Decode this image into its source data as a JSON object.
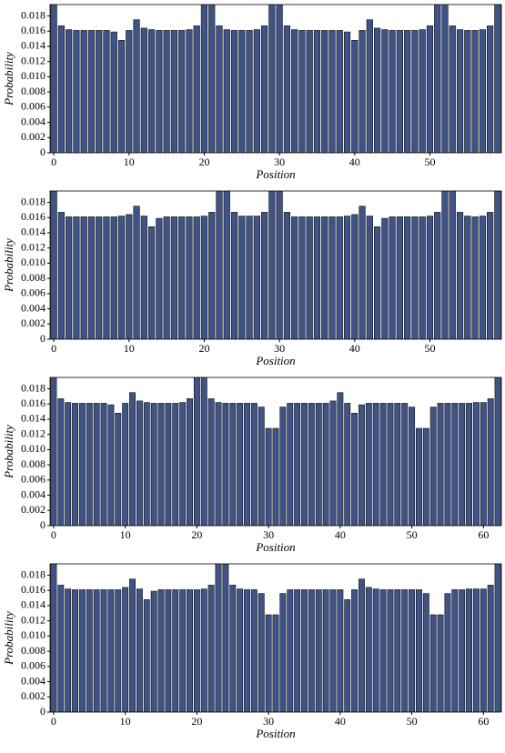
{
  "chart_data": [
    {
      "type": "bar",
      "xlabel": "Position",
      "ylabel": "Probability",
      "color": "#3f5387",
      "x": [
        0,
        1,
        2,
        3,
        4,
        5,
        6,
        7,
        8,
        9,
        10,
        11,
        12,
        13,
        14,
        15,
        16,
        17,
        18,
        19,
        20,
        21,
        22,
        23,
        24,
        25,
        26,
        27,
        28,
        29,
        30,
        31,
        32,
        33,
        34,
        35,
        36,
        37,
        38,
        39,
        40,
        41,
        42,
        43,
        44,
        45,
        46,
        47,
        48,
        49,
        50,
        51,
        52,
        53,
        54,
        55,
        56,
        57,
        58,
        59
      ],
      "values": [
        0.02,
        0.0167,
        0.0162,
        0.0161,
        0.0161,
        0.0161,
        0.0161,
        0.0161,
        0.0159,
        0.0148,
        0.0161,
        0.0175,
        0.0164,
        0.0162,
        0.0161,
        0.0161,
        0.0161,
        0.0161,
        0.0162,
        0.0167,
        0.02,
        0.02,
        0.0167,
        0.0162,
        0.0161,
        0.0161,
        0.0161,
        0.0162,
        0.0167,
        0.02,
        0.02,
        0.0167,
        0.0162,
        0.0161,
        0.0161,
        0.0161,
        0.0161,
        0.0161,
        0.0161,
        0.0159,
        0.0148,
        0.0161,
        0.0175,
        0.0164,
        0.0162,
        0.0161,
        0.0161,
        0.0161,
        0.0161,
        0.0162,
        0.0167,
        0.02,
        0.02,
        0.0167,
        0.0162,
        0.0161,
        0.0161,
        0.0162,
        0.0167,
        0.02
      ],
      "xlim": [
        -0.5,
        59.5
      ],
      "xticks": [
        0,
        10,
        20,
        30,
        40,
        50
      ],
      "ylim": [
        0,
        0.0195
      ],
      "yticks": [
        0,
        0.002,
        0.004,
        0.006,
        0.008,
        {
          "value": 0.01,
          "label": "0.010"
        },
        0.012,
        0.014,
        0.016,
        0.018
      ]
    },
    {
      "type": "bar",
      "xlabel": "Position",
      "ylabel": "Probability",
      "color": "#3f5387",
      "x": [
        0,
        1,
        2,
        3,
        4,
        5,
        6,
        7,
        8,
        9,
        10,
        11,
        12,
        13,
        14,
        15,
        16,
        17,
        18,
        19,
        20,
        21,
        22,
        23,
        24,
        25,
        26,
        27,
        28,
        29,
        30,
        31,
        32,
        33,
        34,
        35,
        36,
        37,
        38,
        39,
        40,
        41,
        42,
        43,
        44,
        45,
        46,
        47,
        48,
        49,
        50,
        51,
        52,
        53,
        54,
        55,
        56,
        57,
        58,
        59
      ],
      "values": [
        0.02,
        0.0167,
        0.0161,
        0.0161,
        0.0161,
        0.0161,
        0.0161,
        0.0161,
        0.0161,
        0.0162,
        0.0164,
        0.0175,
        0.0162,
        0.0148,
        0.0159,
        0.0161,
        0.0161,
        0.0161,
        0.0161,
        0.0161,
        0.0162,
        0.0167,
        0.02,
        0.02,
        0.0167,
        0.0162,
        0.0162,
        0.0162,
        0.0167,
        0.02,
        0.02,
        0.0167,
        0.0161,
        0.0161,
        0.0161,
        0.0161,
        0.0161,
        0.0161,
        0.0161,
        0.0162,
        0.0164,
        0.0175,
        0.0162,
        0.0148,
        0.0159,
        0.0161,
        0.0161,
        0.0161,
        0.0161,
        0.0161,
        0.0162,
        0.0167,
        0.02,
        0.02,
        0.0167,
        0.0162,
        0.0161,
        0.0162,
        0.0167,
        0.02
      ],
      "xlim": [
        -0.5,
        59.5
      ],
      "xticks": [
        0,
        10,
        20,
        30,
        40,
        50
      ],
      "ylim": [
        0,
        0.0195
      ],
      "yticks": [
        0,
        0.002,
        0.004,
        0.006,
        0.008,
        {
          "value": 0.01,
          "label": "0.010"
        },
        0.012,
        0.014,
        0.016,
        0.018
      ]
    },
    {
      "type": "bar",
      "xlabel": "Position",
      "ylabel": "Probability",
      "color": "#3f5387",
      "x": [
        0,
        1,
        2,
        3,
        4,
        5,
        6,
        7,
        8,
        9,
        10,
        11,
        12,
        13,
        14,
        15,
        16,
        17,
        18,
        19,
        20,
        21,
        22,
        23,
        24,
        25,
        26,
        27,
        28,
        29,
        30,
        31,
        32,
        33,
        34,
        35,
        36,
        37,
        38,
        39,
        40,
        41,
        42,
        43,
        44,
        45,
        46,
        47,
        48,
        49,
        50,
        51,
        52,
        53,
        54,
        55,
        56,
        57,
        58,
        59,
        60,
        61,
        62
      ],
      "values": [
        0.02,
        0.0167,
        0.0162,
        0.0161,
        0.0161,
        0.0161,
        0.0161,
        0.0161,
        0.0159,
        0.0148,
        0.0161,
        0.0175,
        0.0164,
        0.0162,
        0.0161,
        0.0161,
        0.0161,
        0.0161,
        0.0162,
        0.0167,
        0.02,
        0.02,
        0.0167,
        0.0162,
        0.0161,
        0.0161,
        0.0161,
        0.0161,
        0.0161,
        0.0156,
        0.0128,
        0.0128,
        0.0156,
        0.0161,
        0.0161,
        0.0161,
        0.0161,
        0.0161,
        0.0161,
        0.0164,
        0.0175,
        0.0161,
        0.0148,
        0.0159,
        0.0161,
        0.0161,
        0.0161,
        0.0161,
        0.0161,
        0.0161,
        0.0156,
        0.0128,
        0.0128,
        0.0156,
        0.0161,
        0.0161,
        0.0161,
        0.0161,
        0.0161,
        0.0162,
        0.0162,
        0.0167,
        0.02
      ],
      "xlim": [
        -0.5,
        62.5
      ],
      "xticks": [
        0,
        10,
        20,
        30,
        40,
        50,
        60
      ],
      "ylim": [
        0,
        0.0195
      ],
      "yticks": [
        0,
        0.002,
        0.004,
        0.006,
        0.008,
        {
          "value": 0.01,
          "label": "0.010"
        },
        0.012,
        0.014,
        0.016,
        0.018
      ]
    },
    {
      "type": "bar",
      "xlabel": "Position",
      "ylabel": "Probability",
      "color": "#3f5387",
      "x": [
        0,
        1,
        2,
        3,
        4,
        5,
        6,
        7,
        8,
        9,
        10,
        11,
        12,
        13,
        14,
        15,
        16,
        17,
        18,
        19,
        20,
        21,
        22,
        23,
        24,
        25,
        26,
        27,
        28,
        29,
        30,
        31,
        32,
        33,
        34,
        35,
        36,
        37,
        38,
        39,
        40,
        41,
        42,
        43,
        44,
        45,
        46,
        47,
        48,
        49,
        50,
        51,
        52,
        53,
        54,
        55,
        56,
        57,
        58,
        59,
        60,
        61,
        62
      ],
      "values": [
        0.02,
        0.0167,
        0.0162,
        0.0161,
        0.0161,
        0.0161,
        0.0161,
        0.0161,
        0.0161,
        0.0161,
        0.0164,
        0.0175,
        0.0162,
        0.0148,
        0.0159,
        0.0161,
        0.0161,
        0.0161,
        0.0161,
        0.0161,
        0.0161,
        0.0162,
        0.0167,
        0.02,
        0.02,
        0.0167,
        0.0162,
        0.0161,
        0.0161,
        0.0156,
        0.0128,
        0.0128,
        0.0156,
        0.0161,
        0.0161,
        0.0161,
        0.0161,
        0.0161,
        0.0161,
        0.0161,
        0.0161,
        0.0148,
        0.0161,
        0.0175,
        0.0164,
        0.0162,
        0.0161,
        0.0161,
        0.0161,
        0.0161,
        0.0161,
        0.0161,
        0.0156,
        0.0128,
        0.0128,
        0.0156,
        0.0161,
        0.0161,
        0.0162,
        0.0162,
        0.0162,
        0.0167,
        0.02
      ],
      "xlim": [
        -0.5,
        62.5
      ],
      "xticks": [
        0,
        10,
        20,
        30,
        40,
        50,
        60
      ],
      "ylim": [
        0,
        0.0195
      ],
      "yticks": [
        0,
        0.002,
        0.004,
        0.006,
        0.008,
        {
          "value": 0.01,
          "label": "0.010"
        },
        0.012,
        0.014,
        0.016,
        0.018
      ]
    }
  ]
}
